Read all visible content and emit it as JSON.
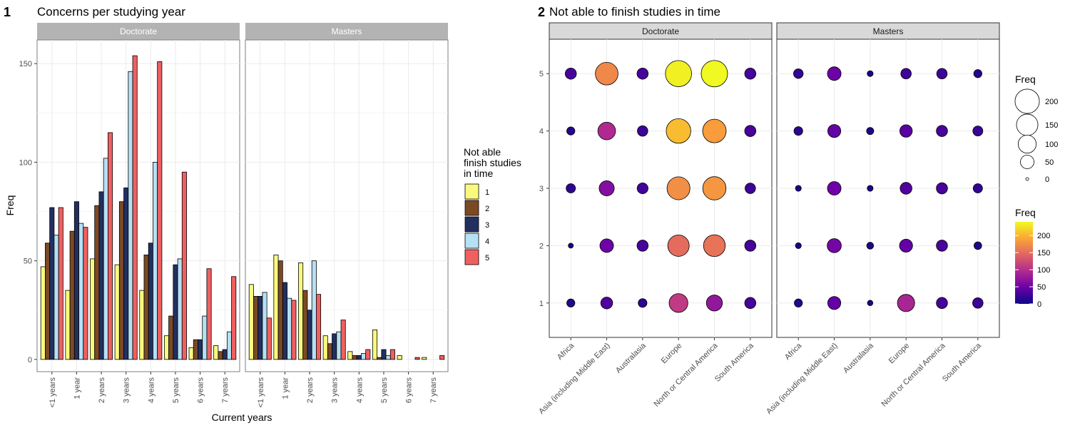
{
  "tags": [
    "1",
    "2"
  ],
  "chart_data": [
    {
      "type": "bar",
      "title": "Concerns per studying year",
      "xlabel": "Current years",
      "ylabel": "Freq",
      "ylim": [
        0,
        160
      ],
      "yticks": [
        "0",
        "50",
        "100",
        "150"
      ],
      "categories": [
        "<1 years",
        "1 year",
        "2 years",
        "3 years",
        "4 years",
        "5 years",
        "6 years",
        "7 years"
      ],
      "facets": [
        "Doctorate",
        "Masters"
      ],
      "legend": {
        "title_lines": [
          "Not able",
          "finish studies",
          "in time"
        ],
        "placement": "right",
        "keys": [
          "1",
          "2",
          "3",
          "4",
          "5"
        ]
      },
      "colors": [
        "#f9f97e",
        "#7b4a25",
        "#223060",
        "#b6e0f4",
        "#f06060"
      ],
      "series": {
        "Doctorate": [
          [
            47,
            35,
            51,
            48,
            35,
            12,
            6,
            7
          ],
          [
            59,
            65,
            78,
            80,
            53,
            22,
            10,
            4
          ],
          [
            77,
            80,
            85,
            87,
            59,
            48,
            10,
            5
          ],
          [
            63,
            69,
            102,
            146,
            100,
            51,
            22,
            14
          ],
          [
            77,
            67,
            115,
            154,
            151,
            95,
            46,
            42
          ]
        ],
        "Masters": [
          [
            38,
            53,
            49,
            12,
            4,
            15,
            2,
            1
          ],
          [
            32,
            50,
            35,
            8,
            2,
            1,
            0,
            0
          ],
          [
            32,
            39,
            25,
            13,
            2,
            5,
            0,
            0
          ],
          [
            34,
            31,
            50,
            14,
            3,
            2,
            0,
            0
          ],
          [
            21,
            30,
            33,
            20,
            5,
            5,
            1,
            2
          ]
        ]
      }
    },
    {
      "type": "scatter",
      "title": "Not able to finish studies in time",
      "categories": [
        "Africa",
        "Asia (including Middle East)",
        "Australasia",
        "Europe",
        "North or Central America",
        "South America"
      ],
      "yticks": [
        "1",
        "2",
        "3",
        "4",
        "5"
      ],
      "facets": [
        "Doctorate",
        "Masters"
      ],
      "size_legend": {
        "title": "Freq",
        "breaks": [
          "200",
          "150",
          "100",
          "50",
          "0"
        ]
      },
      "color_legend": {
        "title": "Freq",
        "breaks": [
          "200",
          "150",
          "100",
          "50",
          "0"
        ],
        "range": [
          0,
          240
        ]
      },
      "points": {
        "Doctorate": {
          "1": [
            12,
            35,
            15,
            110,
            75,
            30
          ],
          "2": [
            2,
            50,
            30,
            150,
            155,
            30
          ],
          "3": [
            18,
            65,
            28,
            175,
            180,
            25
          ],
          "4": [
            12,
            95,
            25,
            205,
            185,
            30
          ],
          "5": [
            30,
            170,
            30,
            235,
            240,
            30
          ]
        },
        "Masters": {
          "1": [
            12,
            45,
            3,
            90,
            30,
            25
          ],
          "2": [
            4,
            55,
            7,
            45,
            30,
            10
          ],
          "3": [
            4,
            50,
            4,
            35,
            30,
            18
          ],
          "4": [
            15,
            45,
            8,
            40,
            30,
            22
          ],
          "5": [
            20,
            50,
            4,
            25,
            25,
            12
          ]
        }
      }
    }
  ]
}
